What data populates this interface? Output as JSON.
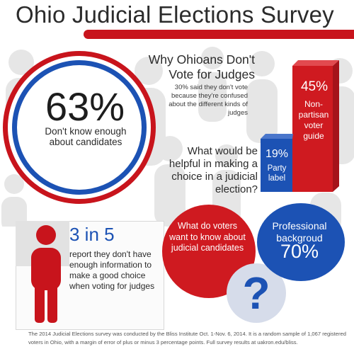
{
  "title": "Ohio Judicial Elections Survey",
  "headline_stat": {
    "value": "63%",
    "label": "Don't know enough about candidates"
  },
  "why": {
    "title": "Why Ohioans Don't Vote for Judges",
    "note": "30% said they don't vote because they're confused about the different kinds of judges"
  },
  "bars": [
    {
      "value": "45%",
      "label": "Non-partisan voter guide"
    },
    {
      "value": "19%",
      "label": "Party label"
    }
  ],
  "helpful_question": "What would be helpful in making a choice in a judicial election?",
  "stat_3in5": {
    "value": "3 in 5",
    "text": "report they don't have enough information to make a good choice when voting for judges"
  },
  "voters_question": "What do voters want to know about judicial candidates",
  "professional": {
    "label": "Professional backgroud",
    "value": "70%"
  },
  "footnote": "The 2014 Judicial Elections survey was conducted by the Bliss Institute Oct. 1-Nov. 6, 2014. It is a random sample of 1,067 registered voters in Ohio, with a margin of error of plus or minus 3 percentage points. Full survey results at uakron.edu/bliss.",
  "colors": {
    "red": "#cf1a20",
    "blue": "#1c52b4",
    "gray": "#e6e6e6",
    "text": "#2b2b2b"
  }
}
